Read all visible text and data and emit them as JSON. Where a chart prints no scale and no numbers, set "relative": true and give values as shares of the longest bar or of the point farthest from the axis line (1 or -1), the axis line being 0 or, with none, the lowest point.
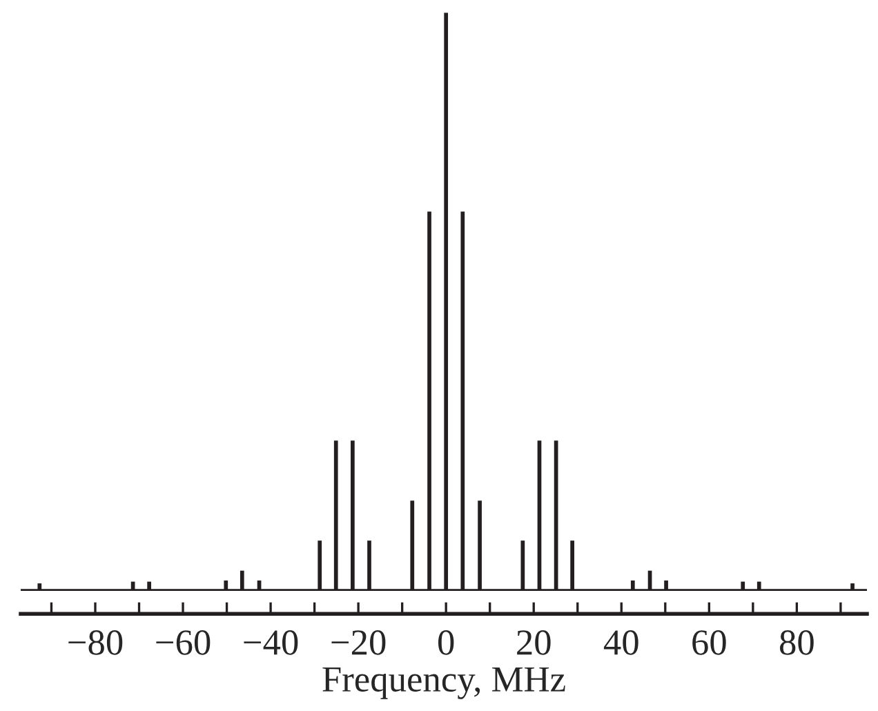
{
  "chart_data": {
    "type": "bar",
    "relative": true,
    "xlabel": "Frequency, MHz",
    "color": "#231f20",
    "x": [
      -92.7,
      -71.4,
      -67.7,
      -50.2,
      -46.5,
      -42.6,
      -28.8,
      -25.1,
      -21.3,
      -17.5,
      -7.7,
      -3.8,
      0,
      3.8,
      7.7,
      17.5,
      21.3,
      25.1,
      28.8,
      42.6,
      46.5,
      50.2,
      67.7,
      71.4,
      92.7
    ],
    "values": [
      0.013,
      0.016,
      0.016,
      0.018,
      0.035,
      0.018,
      0.087,
      0.26,
      0.26,
      0.087,
      0.156,
      0.656,
      1,
      0.656,
      0.156,
      0.087,
      0.26,
      0.26,
      0.087,
      0.018,
      0.035,
      0.018,
      0.016,
      0.016,
      0.013
    ],
    "xlim": [
      -97,
      96
    ],
    "xticks": [
      {
        "value": -90,
        "label": null
      },
      {
        "value": -80,
        "label": "−80"
      },
      {
        "value": -70,
        "label": null
      },
      {
        "value": -60,
        "label": "−60"
      },
      {
        "value": -50,
        "label": null
      },
      {
        "value": -40,
        "label": "−40"
      },
      {
        "value": -30,
        "label": null
      },
      {
        "value": -20,
        "label": "−20"
      },
      {
        "value": -10,
        "label": null
      },
      {
        "value": 0,
        "label": "0"
      },
      {
        "value": 10,
        "label": null
      },
      {
        "value": 20,
        "label": "20"
      },
      {
        "value": 30,
        "label": null
      },
      {
        "value": 40,
        "label": "40"
      },
      {
        "value": 50,
        "label": null
      },
      {
        "value": 60,
        "label": "60"
      },
      {
        "value": 70,
        "label": null
      },
      {
        "value": 80,
        "label": "80"
      },
      {
        "value": 90,
        "label": null
      }
    ],
    "grid": false,
    "legend": false
  }
}
